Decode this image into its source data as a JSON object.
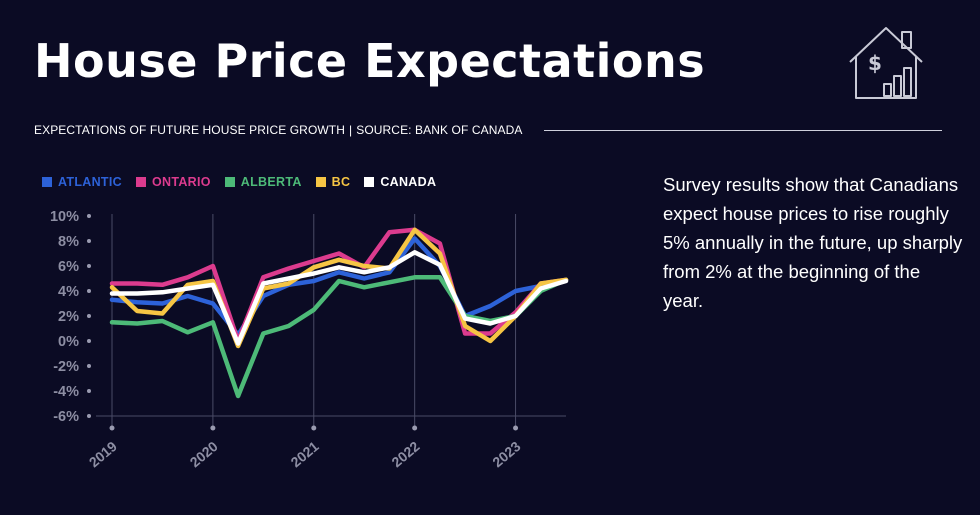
{
  "header": {
    "title": "House Price Expectations",
    "subtitle_main": "EXPECTATIONS OF FUTURE HOUSE PRICE GROWTH",
    "subtitle_sep": "|",
    "subtitle_source": "SOURCE: BANK OF CANADA",
    "icon": "house-dollar-chart-icon"
  },
  "note": {
    "text": "Survey results show that Canadians expect house prices to rise roughly 5% annually in the future, up sharply from 2% at the beginning of the year."
  },
  "chart_data": {
    "type": "line",
    "title": "House Price Expectations",
    "xlabel": "",
    "ylabel": "",
    "ylim": [
      -6,
      10
    ],
    "xlim": [
      2019,
      2023.5
    ],
    "yticks": [
      "10%",
      "8%",
      "6%",
      "4%",
      "2%",
      "0%",
      "-2%",
      "-4%",
      "-6%"
    ],
    "ytick_values": [
      10,
      8,
      6,
      4,
      2,
      0,
      -2,
      -4,
      -6
    ],
    "xticks": [
      "2019",
      "2020",
      "2021",
      "2022",
      "2023"
    ],
    "xtick_values": [
      2019,
      2020,
      2021,
      2022,
      2023
    ],
    "grid": "vertical lines at years, horizontal baseline at -6%",
    "legend_position": "top-left",
    "x": [
      2019.0,
      2019.25,
      2019.5,
      2019.75,
      2020.0,
      2020.25,
      2020.5,
      2020.75,
      2021.0,
      2021.25,
      2021.5,
      2021.75,
      2022.0,
      2022.25,
      2022.5,
      2022.75,
      2023.0,
      2023.25,
      2023.5
    ],
    "series": [
      {
        "name": "ATLANTIC",
        "color": "#2d62d8",
        "values": [
          3.3,
          3.1,
          3.0,
          3.6,
          3.0,
          0.5,
          3.6,
          4.5,
          4.8,
          5.5,
          5.0,
          5.5,
          8.2,
          6.0,
          2.0,
          2.8,
          4.0,
          4.4,
          4.9
        ]
      },
      {
        "name": "ONTARIO",
        "color": "#dc3b8e",
        "values": [
          4.6,
          4.6,
          4.5,
          5.1,
          6.0,
          0.0,
          5.1,
          5.8,
          6.4,
          7.0,
          5.9,
          8.7,
          8.9,
          7.8,
          0.6,
          0.6,
          2.3,
          4.6,
          4.9
        ]
      },
      {
        "name": "ALBERTA",
        "color": "#4dba78",
        "values": [
          1.5,
          1.4,
          1.6,
          0.7,
          1.5,
          -4.4,
          0.6,
          1.2,
          2.5,
          4.8,
          4.3,
          4.7,
          5.1,
          5.1,
          2.0,
          1.6,
          2.0,
          4.0,
          4.9
        ]
      },
      {
        "name": "BC",
        "color": "#f6c544",
        "values": [
          4.3,
          2.4,
          2.2,
          4.5,
          4.8,
          -0.4,
          4.2,
          4.6,
          5.9,
          6.5,
          6.0,
          5.8,
          8.9,
          7.0,
          1.2,
          0.0,
          2.0,
          4.6,
          4.9
        ]
      },
      {
        "name": "CANADA",
        "color": "#ffffff",
        "values": [
          3.8,
          3.8,
          3.9,
          4.2,
          4.5,
          -0.2,
          4.6,
          5.0,
          5.4,
          5.9,
          5.5,
          5.9,
          7.1,
          6.1,
          1.8,
          1.4,
          2.0,
          4.2,
          4.8
        ]
      }
    ]
  }
}
